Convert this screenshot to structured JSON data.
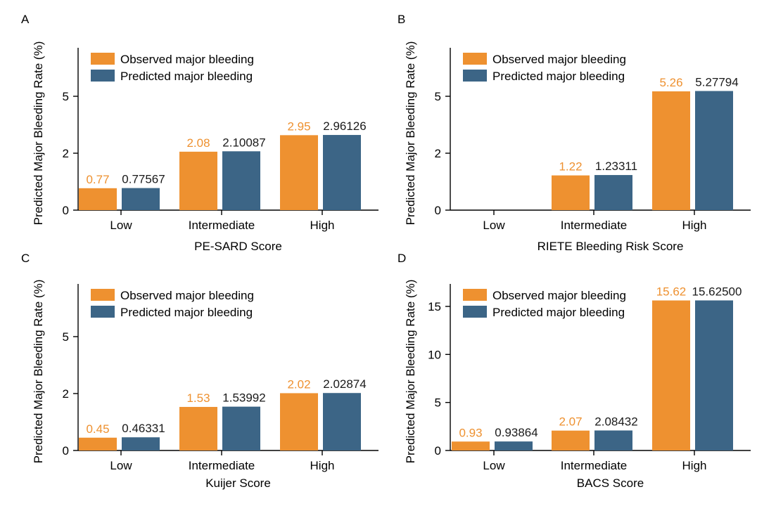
{
  "legend_labels": {
    "observed": "Observed major bleeding",
    "predicted": "Predicted major bleeding"
  },
  "colors": {
    "observed": "#EE9130",
    "predicted": "#3C6586",
    "observed_label": "#EE9130",
    "predicted_label": "#1a1a1a"
  },
  "chart_data": [
    {
      "panel": "A",
      "type": "bar",
      "xlabel": "PE-SARD Score",
      "ylabel": "Predicted Major Bleeding Rate (%)",
      "categories": [
        "Low",
        "Intermediate",
        "High"
      ],
      "ytick_labels": [
        "0",
        "2",
        "5"
      ],
      "legend_position": "top-left",
      "series": [
        {
          "name": "Observed major bleeding",
          "values": [
            0.77,
            2.08,
            2.95
          ],
          "labels": [
            "0.77",
            "2.08",
            "2.95"
          ]
        },
        {
          "name": "Predicted major bleeding",
          "values": [
            0.77567,
            2.10087,
            2.96126
          ],
          "labels": [
            "0.77567",
            "2.10087",
            "2.96126"
          ]
        }
      ]
    },
    {
      "panel": "B",
      "type": "bar",
      "xlabel": "RIETE Bleeding Risk Score",
      "ylabel": "Predicted Major Bleeding Rate (%)",
      "categories": [
        "Low",
        "Intermediate",
        "High"
      ],
      "ytick_labels": [
        "0",
        "2",
        "5"
      ],
      "legend_position": "top-left",
      "series": [
        {
          "name": "Observed major bleeding",
          "values": [
            null,
            1.22,
            5.26
          ],
          "labels": [
            "",
            "1.22",
            "5.26"
          ]
        },
        {
          "name": "Predicted major bleeding",
          "values": [
            null,
            1.23311,
            5.27794
          ],
          "labels": [
            "",
            "1.23311",
            "5.27794"
          ]
        }
      ]
    },
    {
      "panel": "C",
      "type": "bar",
      "xlabel": "Kuijer Score",
      "ylabel": "Predicted Major Bleeding Rate (%)",
      "categories": [
        "Low",
        "Intermediate",
        "High"
      ],
      "ytick_labels": [
        "0",
        "2",
        "5"
      ],
      "legend_position": "top-left",
      "series": [
        {
          "name": "Observed major bleeding",
          "values": [
            0.45,
            1.53,
            2.02
          ],
          "labels": [
            "0.45",
            "1.53",
            "2.02"
          ]
        },
        {
          "name": "Predicted major bleeding",
          "values": [
            0.46331,
            1.53992,
            2.02874
          ],
          "labels": [
            "0.46331",
            "1.53992",
            "2.02874"
          ]
        }
      ]
    },
    {
      "panel": "D",
      "type": "bar",
      "xlabel": "BACS Score",
      "ylabel": "Predicted Major Bleeding Rate (%)",
      "categories": [
        "Low",
        "Intermediate",
        "High"
      ],
      "ytick_labels": [
        "0",
        "5",
        "10",
        "15"
      ],
      "legend_position": "top-left",
      "series": [
        {
          "name": "Observed major bleeding",
          "values": [
            0.93,
            2.07,
            15.62
          ],
          "labels": [
            "0.93",
            "2.07",
            "15.62"
          ]
        },
        {
          "name": "Predicted major bleeding",
          "values": [
            0.93864,
            2.08432,
            15.625
          ],
          "labels": [
            "0.93864",
            "2.08432",
            "15.62500"
          ]
        }
      ]
    }
  ]
}
